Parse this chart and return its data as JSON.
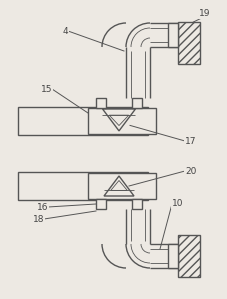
{
  "bg_color": "#ede9e3",
  "line_color": "#555555",
  "lw": 1.0,
  "thin_lw": 0.6,
  "label_fs": 6.5,
  "label_color": "#444444"
}
